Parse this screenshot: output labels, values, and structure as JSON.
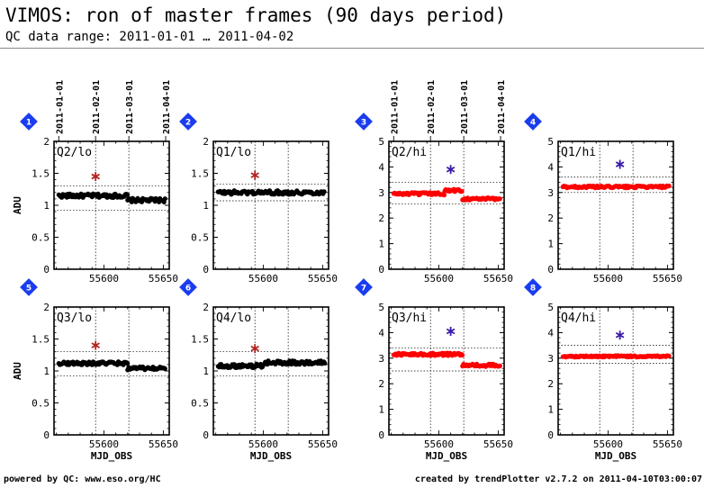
{
  "title": "VIMOS: ron of master frames (90 days period)",
  "subtitle": "QC data range: 2011-01-01 … 2011-04-02",
  "footer_left": "powered by QC: www.eso.org/HC",
  "footer_right": "created by trendPlotter v2.7.2 on 2011-04-10T03:00:07",
  "colors": {
    "lo": "#000000",
    "hi": "#ff0000",
    "lo_ref": "#b22222",
    "hi_ref": "#3a1aa8",
    "badge": "#1a3cf0"
  },
  "chart_data": [
    {
      "type": "scatter",
      "panel": "1",
      "label": "Q2/lo",
      "ylabel": "ADU",
      "xlabel": "",
      "ylim": [
        0,
        2
      ],
      "yticks": [
        "0",
        "0.5",
        "1",
        "1.5",
        "2"
      ],
      "xlim": [
        55558,
        55655
      ],
      "xticks": [
        "55600",
        "55650"
      ],
      "top_dates": [
        "2011-01-01",
        "2011-02-01",
        "2011-03-01",
        "2011-04-01"
      ],
      "color_key": "lo",
      "ref_point": {
        "x": 55593,
        "y": 1.45,
        "color_key": "lo_ref"
      },
      "ref_lines": [
        1.3,
        0.92
      ],
      "levels": [
        {
          "x0": 55562,
          "x1": 55620,
          "y": 1.15
        },
        {
          "x0": 55620,
          "x1": 55652,
          "y": 1.08
        }
      ],
      "scatter": 0.03
    },
    {
      "type": "scatter",
      "panel": "2",
      "label": "Q1/lo",
      "ylabel": "",
      "xlabel": "",
      "ylim": [
        0,
        2
      ],
      "yticks": [
        "0",
        "0.5",
        "1",
        "1.5",
        "2"
      ],
      "xlim": [
        55558,
        55655
      ],
      "xticks": [
        "55600",
        "55650"
      ],
      "top_dates": [],
      "color_key": "lo",
      "ref_point": {
        "x": 55593,
        "y": 1.47,
        "color_key": "lo_ref"
      },
      "ref_lines": [
        1.33,
        1.07
      ],
      "levels": [
        {
          "x0": 55562,
          "x1": 55652,
          "y": 1.2
        }
      ],
      "scatter": 0.03
    },
    {
      "type": "scatter",
      "panel": "3",
      "label": "Q2/hi",
      "ylabel": "",
      "xlabel": "",
      "ylim": [
        0,
        5
      ],
      "yticks": [
        "0",
        "1",
        "2",
        "3",
        "4",
        "5"
      ],
      "xlim": [
        55558,
        55655
      ],
      "xticks": [
        "55600",
        "55650"
      ],
      "top_dates": [
        "2011-01-01",
        "2011-02-01",
        "2011-03-01",
        "2011-04-01"
      ],
      "color_key": "hi",
      "ref_point": {
        "x": 55610,
        "y": 3.9,
        "color_key": "hi_ref"
      },
      "ref_lines": [
        3.4,
        2.55
      ],
      "levels": [
        {
          "x0": 55562,
          "x1": 55605,
          "y": 2.95
        },
        {
          "x0": 55605,
          "x1": 55620,
          "y": 3.08
        },
        {
          "x0": 55620,
          "x1": 55652,
          "y": 2.75
        }
      ],
      "scatter": 0.05
    },
    {
      "type": "scatter",
      "panel": "4",
      "label": "Q1/hi",
      "ylabel": "",
      "xlabel": "",
      "ylim": [
        0,
        5
      ],
      "yticks": [
        "0",
        "1",
        "2",
        "3",
        "4",
        "5"
      ],
      "xlim": [
        55558,
        55655
      ],
      "xticks": [
        "55600",
        "55650"
      ],
      "top_dates": [],
      "color_key": "hi",
      "ref_point": {
        "x": 55610,
        "y": 4.1,
        "color_key": "hi_ref"
      },
      "ref_lines": [
        3.6,
        3.0
      ],
      "levels": [
        {
          "x0": 55562,
          "x1": 55652,
          "y": 3.22
        }
      ],
      "scatter": 0.04
    },
    {
      "type": "scatter",
      "panel": "5",
      "label": "Q3/lo",
      "ylabel": "ADU",
      "xlabel": "MJD_OBS",
      "ylim": [
        0,
        2
      ],
      "yticks": [
        "0",
        "0.5",
        "1",
        "1.5",
        "2"
      ],
      "xlim": [
        55558,
        55655
      ],
      "xticks": [
        "55600",
        "55650"
      ],
      "top_dates": [],
      "color_key": "lo",
      "ref_point": {
        "x": 55593,
        "y": 1.4,
        "color_key": "lo_ref"
      },
      "ref_lines": [
        1.3,
        0.92
      ],
      "levels": [
        {
          "x0": 55562,
          "x1": 55620,
          "y": 1.12
        },
        {
          "x0": 55620,
          "x1": 55652,
          "y": 1.04
        }
      ],
      "scatter": 0.025
    },
    {
      "type": "scatter",
      "panel": "6",
      "label": "Q4/lo",
      "ylabel": "",
      "xlabel": "MJD_OBS",
      "ylim": [
        0,
        2
      ],
      "yticks": [
        "0",
        "0.5",
        "1",
        "1.5",
        "2"
      ],
      "xlim": [
        55558,
        55655
      ],
      "xticks": [
        "55600",
        "55650"
      ],
      "top_dates": [],
      "color_key": "lo",
      "ref_point": {
        "x": 55593,
        "y": 1.35,
        "color_key": "lo_ref"
      },
      "ref_lines": [
        1.3,
        0.92
      ],
      "levels": [
        {
          "x0": 55562,
          "x1": 55600,
          "y": 1.08
        },
        {
          "x0": 55600,
          "x1": 55652,
          "y": 1.13
        }
      ],
      "scatter": 0.03
    },
    {
      "type": "scatter",
      "panel": "7",
      "label": "Q3/hi",
      "ylabel": "",
      "xlabel": "MJD_OBS",
      "ylim": [
        0,
        5
      ],
      "yticks": [
        "0",
        "1",
        "2",
        "3",
        "4",
        "5"
      ],
      "xlim": [
        55558,
        55655
      ],
      "xticks": [
        "55600",
        "55650"
      ],
      "top_dates": [],
      "color_key": "hi",
      "ref_point": {
        "x": 55610,
        "y": 4.05,
        "color_key": "hi_ref"
      },
      "ref_lines": [
        3.4,
        2.5
      ],
      "levels": [
        {
          "x0": 55562,
          "x1": 55620,
          "y": 3.15
        },
        {
          "x0": 55620,
          "x1": 55652,
          "y": 2.72
        }
      ],
      "scatter": 0.05
    },
    {
      "type": "scatter",
      "panel": "8",
      "label": "Q4/hi",
      "ylabel": "",
      "xlabel": "MJD_OBS",
      "ylim": [
        0,
        5
      ],
      "yticks": [
        "0",
        "1",
        "2",
        "3",
        "4",
        "5"
      ],
      "xlim": [
        55558,
        55655
      ],
      "xticks": [
        "55600",
        "55650"
      ],
      "top_dates": [],
      "color_key": "hi",
      "ref_point": {
        "x": 55610,
        "y": 3.9,
        "color_key": "hi_ref"
      },
      "ref_lines": [
        3.5,
        2.8
      ],
      "levels": [
        {
          "x0": 55562,
          "x1": 55652,
          "y": 3.07
        }
      ],
      "scatter": 0.03
    }
  ]
}
